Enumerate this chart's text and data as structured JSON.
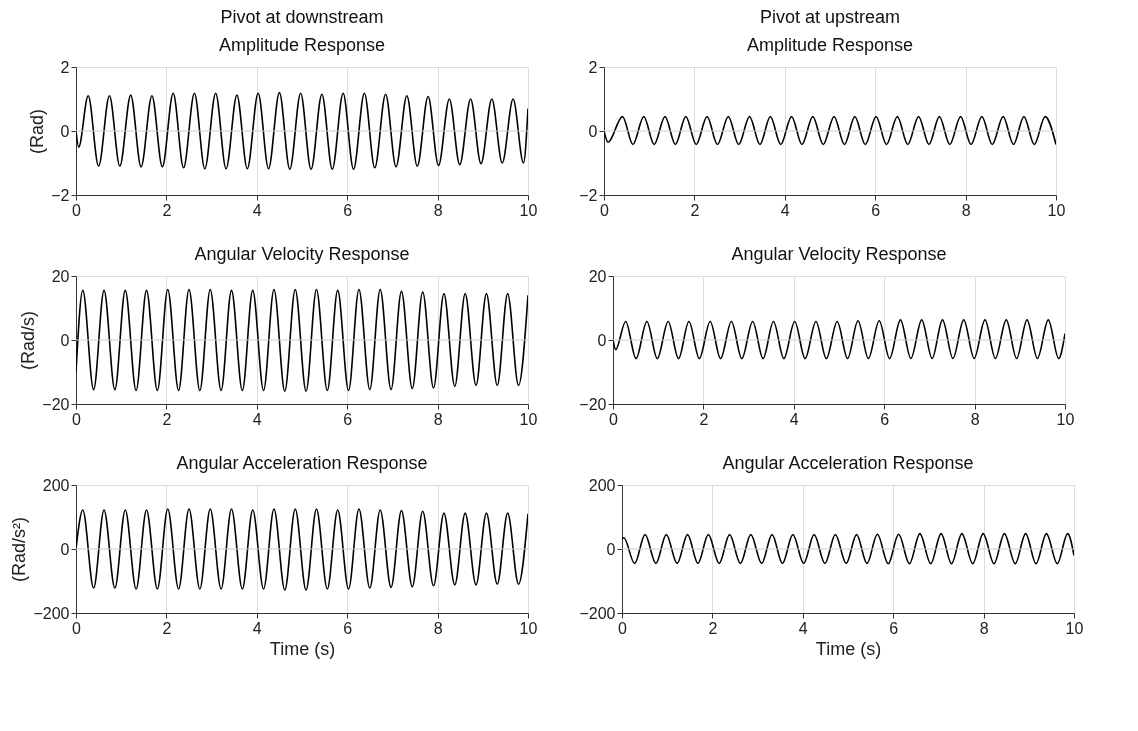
{
  "chart_data": [
    {
      "type": "line",
      "title": "Amplitude Response",
      "annotations": [
        "Pivot at downstream"
      ],
      "ylabel": "(Rad)",
      "xlim": [
        0,
        10
      ],
      "xticks": [
        0,
        2,
        4,
        6,
        8,
        10
      ],
      "ylim": [
        -2,
        2
      ],
      "yticks": [
        -2,
        0,
        2
      ],
      "grid": "x",
      "ref_lines": [
        {
          "axis": "y",
          "value": 0,
          "color": "#d0d0d0"
        }
      ],
      "x": [
        0,
        0.06,
        0.27,
        0.5,
        0.74,
        0.97,
        1.21,
        1.44,
        1.68,
        1.91,
        2.15,
        2.38,
        2.62,
        2.85,
        3.09,
        3.32,
        3.56,
        3.79,
        4.03,
        4.26,
        4.5,
        4.73,
        4.97,
        5.2,
        5.44,
        5.67,
        5.91,
        6.14,
        6.38,
        6.61,
        6.85,
        7.08,
        7.32,
        7.55,
        7.79,
        8.02,
        8.26,
        8.49,
        8.73,
        8.96,
        9.2,
        9.43,
        9.67,
        9.9,
        10
      ],
      "series": [
        {
          "color": "#000000",
          "values": [
            0,
            -0.5,
            1.1,
            -1.1,
            1.1,
            -1.1,
            1.12,
            -1.12,
            1.1,
            -1.12,
            1.18,
            -1.15,
            1.18,
            -1.18,
            1.18,
            -1.18,
            1.12,
            -1.18,
            1.18,
            -1.18,
            1.2,
            -1.2,
            1.18,
            -1.2,
            1.15,
            -1.2,
            1.18,
            -1.2,
            1.18,
            -1.15,
            1.15,
            -1.12,
            1.1,
            -1.1,
            1.08,
            -1.08,
            1.0,
            -1.05,
            1.0,
            -1.02,
            1.0,
            -1.0,
            1.0,
            -1.0,
            0.7
          ]
        }
      ]
    },
    {
      "type": "line",
      "title": "Amplitude Response",
      "annotations": [
        "Pivot at upstream"
      ],
      "xlim": [
        0,
        10
      ],
      "xticks": [
        0,
        2,
        4,
        6,
        8,
        10
      ],
      "ylim": [
        -2,
        2
      ],
      "yticks": [
        -2,
        0,
        2
      ],
      "grid": "x",
      "ref_lines": [
        {
          "axis": "y",
          "value": 0,
          "color": "#d0d0d0"
        }
      ],
      "x": [
        0,
        0.09,
        0.41,
        0.64,
        0.88,
        1.11,
        1.35,
        1.58,
        1.81,
        2.04,
        2.28,
        2.51,
        2.75,
        2.98,
        3.22,
        3.45,
        3.68,
        3.91,
        4.15,
        4.38,
        4.62,
        4.85,
        5.09,
        5.32,
        5.55,
        5.78,
        6.02,
        6.25,
        6.49,
        6.72,
        6.96,
        7.19,
        7.42,
        7.65,
        7.89,
        8.12,
        8.36,
        8.59,
        8.83,
        9.06,
        9.29,
        9.52,
        9.76,
        10
      ],
      "series": [
        {
          "color": "#000000",
          "values": [
            0,
            -0.35,
            0.45,
            -0.42,
            0.45,
            -0.42,
            0.45,
            -0.42,
            0.45,
            -0.42,
            0.45,
            -0.42,
            0.45,
            -0.42,
            0.45,
            -0.42,
            0.45,
            -0.42,
            0.45,
            -0.42,
            0.45,
            -0.42,
            0.45,
            -0.42,
            0.45,
            -0.42,
            0.45,
            -0.42,
            0.45,
            -0.42,
            0.45,
            -0.42,
            0.45,
            -0.42,
            0.45,
            -0.42,
            0.45,
            -0.42,
            0.45,
            -0.42,
            0.45,
            -0.42,
            0.45,
            -0.42
          ]
        }
      ]
    },
    {
      "type": "line",
      "title": "Angular Velocity Response",
      "ylabel": "(Rad/s)",
      "xlim": [
        0,
        10
      ],
      "xticks": [
        0,
        2,
        4,
        6,
        8,
        10
      ],
      "ylim": [
        -20,
        20
      ],
      "yticks": [
        -20,
        0,
        20
      ],
      "grid": "x",
      "ref_lines": [
        {
          "axis": "y",
          "value": 0,
          "color": "#d0d0d0"
        }
      ],
      "x": [
        0,
        0.15,
        0.39,
        0.62,
        0.86,
        1.09,
        1.33,
        1.56,
        1.8,
        2.03,
        2.27,
        2.5,
        2.74,
        2.97,
        3.21,
        3.44,
        3.68,
        3.91,
        4.15,
        4.38,
        4.62,
        4.85,
        5.09,
        5.32,
        5.56,
        5.79,
        6.03,
        6.26,
        6.5,
        6.73,
        6.97,
        7.2,
        7.44,
        7.67,
        7.91,
        8.14,
        8.38,
        8.61,
        8.85,
        9.08,
        9.32,
        9.55,
        9.79,
        10
      ],
      "series": [
        {
          "color": "#000000",
          "values": [
            -10,
            15.5,
            -15.5,
            15.5,
            -15.5,
            15.5,
            -15.8,
            15.5,
            -15.8,
            15.8,
            -15.8,
            15.8,
            -15.8,
            15.8,
            -15.8,
            15.5,
            -15.8,
            15.5,
            -15.8,
            15.8,
            -16,
            15.8,
            -16,
            15.8,
            -15.8,
            15.5,
            -15.8,
            15.8,
            -15.5,
            15.8,
            -15.5,
            15.2,
            -15.2,
            15,
            -15,
            14.5,
            -14.5,
            14.5,
            -14.2,
            14.5,
            -14.2,
            14.5,
            -14.2,
            14
          ]
        }
      ]
    },
    {
      "type": "line",
      "title": "Angular Velocity Response",
      "xlim": [
        0,
        10
      ],
      "xticks": [
        0,
        2,
        4,
        6,
        8,
        10
      ],
      "ylim": [
        -20,
        20
      ],
      "yticks": [
        -20,
        0,
        20
      ],
      "grid": "x",
      "ref_lines": [
        {
          "axis": "y",
          "value": 0,
          "color": "#d0d0d0"
        }
      ],
      "x": [
        0,
        0.06,
        0.28,
        0.51,
        0.75,
        0.98,
        1.22,
        1.45,
        1.68,
        1.91,
        2.15,
        2.38,
        2.62,
        2.85,
        3.09,
        3.32,
        3.55,
        3.78,
        4.02,
        4.25,
        4.49,
        4.72,
        4.96,
        5.19,
        5.42,
        5.65,
        5.89,
        6.12,
        6.36,
        6.59,
        6.83,
        7.06,
        7.29,
        7.52,
        7.76,
        7.99,
        8.23,
        8.46,
        8.7,
        8.93,
        9.16,
        9.39,
        9.63,
        9.86,
        10
      ],
      "series": [
        {
          "color": "#000000",
          "values": [
            0,
            -3,
            5.8,
            -5.8,
            5.8,
            -5.8,
            5.8,
            -5.8,
            5.8,
            -5.8,
            5.8,
            -5.8,
            5.8,
            -5.8,
            5.8,
            -5.8,
            5.8,
            -5.8,
            5.8,
            -5.8,
            5.8,
            -5.8,
            5.8,
            -5.8,
            6,
            -5.8,
            6,
            -5.8,
            6.3,
            -5.8,
            6.3,
            -5.8,
            6.3,
            -5.8,
            6.3,
            -5.8,
            6.3,
            -5.8,
            6.3,
            -5.8,
            6.3,
            -5.8,
            6.3,
            -5.8,
            2
          ]
        }
      ]
    },
    {
      "type": "line",
      "title": "Angular Acceleration Response",
      "xlabel": "Time (s)",
      "ylabel": "(Rad/s²)",
      "xlim": [
        0,
        10
      ],
      "xticks": [
        0,
        2,
        4,
        6,
        8,
        10
      ],
      "ylim": [
        -200,
        200
      ],
      "yticks": [
        -200,
        0,
        200
      ],
      "grid": "x",
      "ref_lines": [
        {
          "axis": "y",
          "value": 0,
          "color": "#d0d0d0"
        }
      ],
      "x": [
        0,
        0.15,
        0.39,
        0.62,
        0.86,
        1.09,
        1.33,
        1.56,
        1.8,
        2.03,
        2.27,
        2.5,
        2.74,
        2.97,
        3.21,
        3.44,
        3.68,
        3.91,
        4.15,
        4.38,
        4.62,
        4.85,
        5.09,
        5.32,
        5.56,
        5.79,
        6.03,
        6.26,
        6.5,
        6.73,
        6.97,
        7.2,
        7.44,
        7.67,
        7.91,
        8.14,
        8.38,
        8.61,
        8.85,
        9.08,
        9.32,
        9.55,
        9.79,
        10
      ],
      "series": [
        {
          "color": "#000000",
          "values": [
            0,
            122,
            -122,
            122,
            -122,
            122,
            -125,
            122,
            -125,
            125,
            -125,
            125,
            -125,
            125,
            -125,
            125,
            -125,
            122,
            -125,
            125,
            -128,
            125,
            -128,
            125,
            -125,
            122,
            -125,
            125,
            -122,
            122,
            -120,
            120,
            -118,
            118,
            -115,
            112,
            -112,
            112,
            -112,
            112,
            -110,
            112,
            -110,
            110
          ]
        }
      ]
    },
    {
      "type": "line",
      "title": "Angular Acceleration Response",
      "xlabel": "Time (s)",
      "xlim": [
        0,
        10
      ],
      "xticks": [
        0,
        2,
        4,
        6,
        8,
        10
      ],
      "ylim": [
        -200,
        200
      ],
      "yticks": [
        -200,
        0,
        200
      ],
      "grid": "x",
      "ref_lines": [
        {
          "axis": "y",
          "value": 0,
          "color": "#d0d0d0"
        }
      ],
      "x": [
        0,
        0.04,
        0.28,
        0.51,
        0.75,
        0.98,
        1.22,
        1.45,
        1.68,
        1.91,
        2.15,
        2.38,
        2.62,
        2.85,
        3.09,
        3.32,
        3.55,
        3.78,
        4.02,
        4.25,
        4.49,
        4.72,
        4.96,
        5.19,
        5.42,
        5.65,
        5.89,
        6.12,
        6.36,
        6.59,
        6.83,
        7.06,
        7.29,
        7.52,
        7.76,
        7.99,
        8.23,
        8.46,
        8.7,
        8.93,
        9.16,
        9.39,
        9.63,
        9.86,
        10
      ],
      "series": [
        {
          "color": "#000000",
          "values": [
            30,
            35,
            -45,
            45,
            -45,
            45,
            -45,
            45,
            -45,
            45,
            -45,
            45,
            -45,
            45,
            -45,
            45,
            -45,
            45,
            -45,
            45,
            -45,
            45,
            -45,
            45,
            -45,
            46,
            -46,
            46,
            -46,
            48,
            -46,
            48,
            -46,
            48,
            -46,
            48,
            -46,
            48,
            -46,
            48,
            -46,
            48,
            -46,
            48,
            -20
          ]
        }
      ]
    }
  ]
}
